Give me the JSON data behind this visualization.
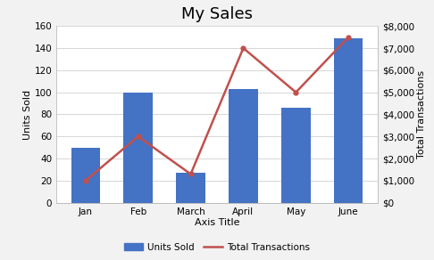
{
  "title": "My Sales",
  "xlabel": "Axis Title",
  "ylabel_left": "Units Sold",
  "ylabel_right": "Total Transactions",
  "categories": [
    "Jan",
    "Feb",
    "March",
    "April",
    "May",
    "June"
  ],
  "units_sold": [
    50,
    100,
    27,
    103,
    86,
    149
  ],
  "total_transactions": [
    1000,
    3000,
    1300,
    7000,
    5000,
    7500
  ],
  "bar_color": "#4472C4",
  "line_color": "#C0504D",
  "left_ylim": [
    0,
    160
  ],
  "right_ylim": [
    0,
    8000
  ],
  "left_yticks": [
    0,
    20,
    40,
    60,
    80,
    100,
    120,
    140,
    160
  ],
  "right_yticks": [
    0,
    1000,
    2000,
    3000,
    4000,
    5000,
    6000,
    7000,
    8000
  ],
  "background_color": "#F2F2F2",
  "plot_bg_color": "#FFFFFF",
  "legend_labels": [
    "Units Sold",
    "Total Transactions"
  ],
  "title_fontsize": 13,
  "axis_label_fontsize": 8,
  "tick_fontsize": 7.5
}
